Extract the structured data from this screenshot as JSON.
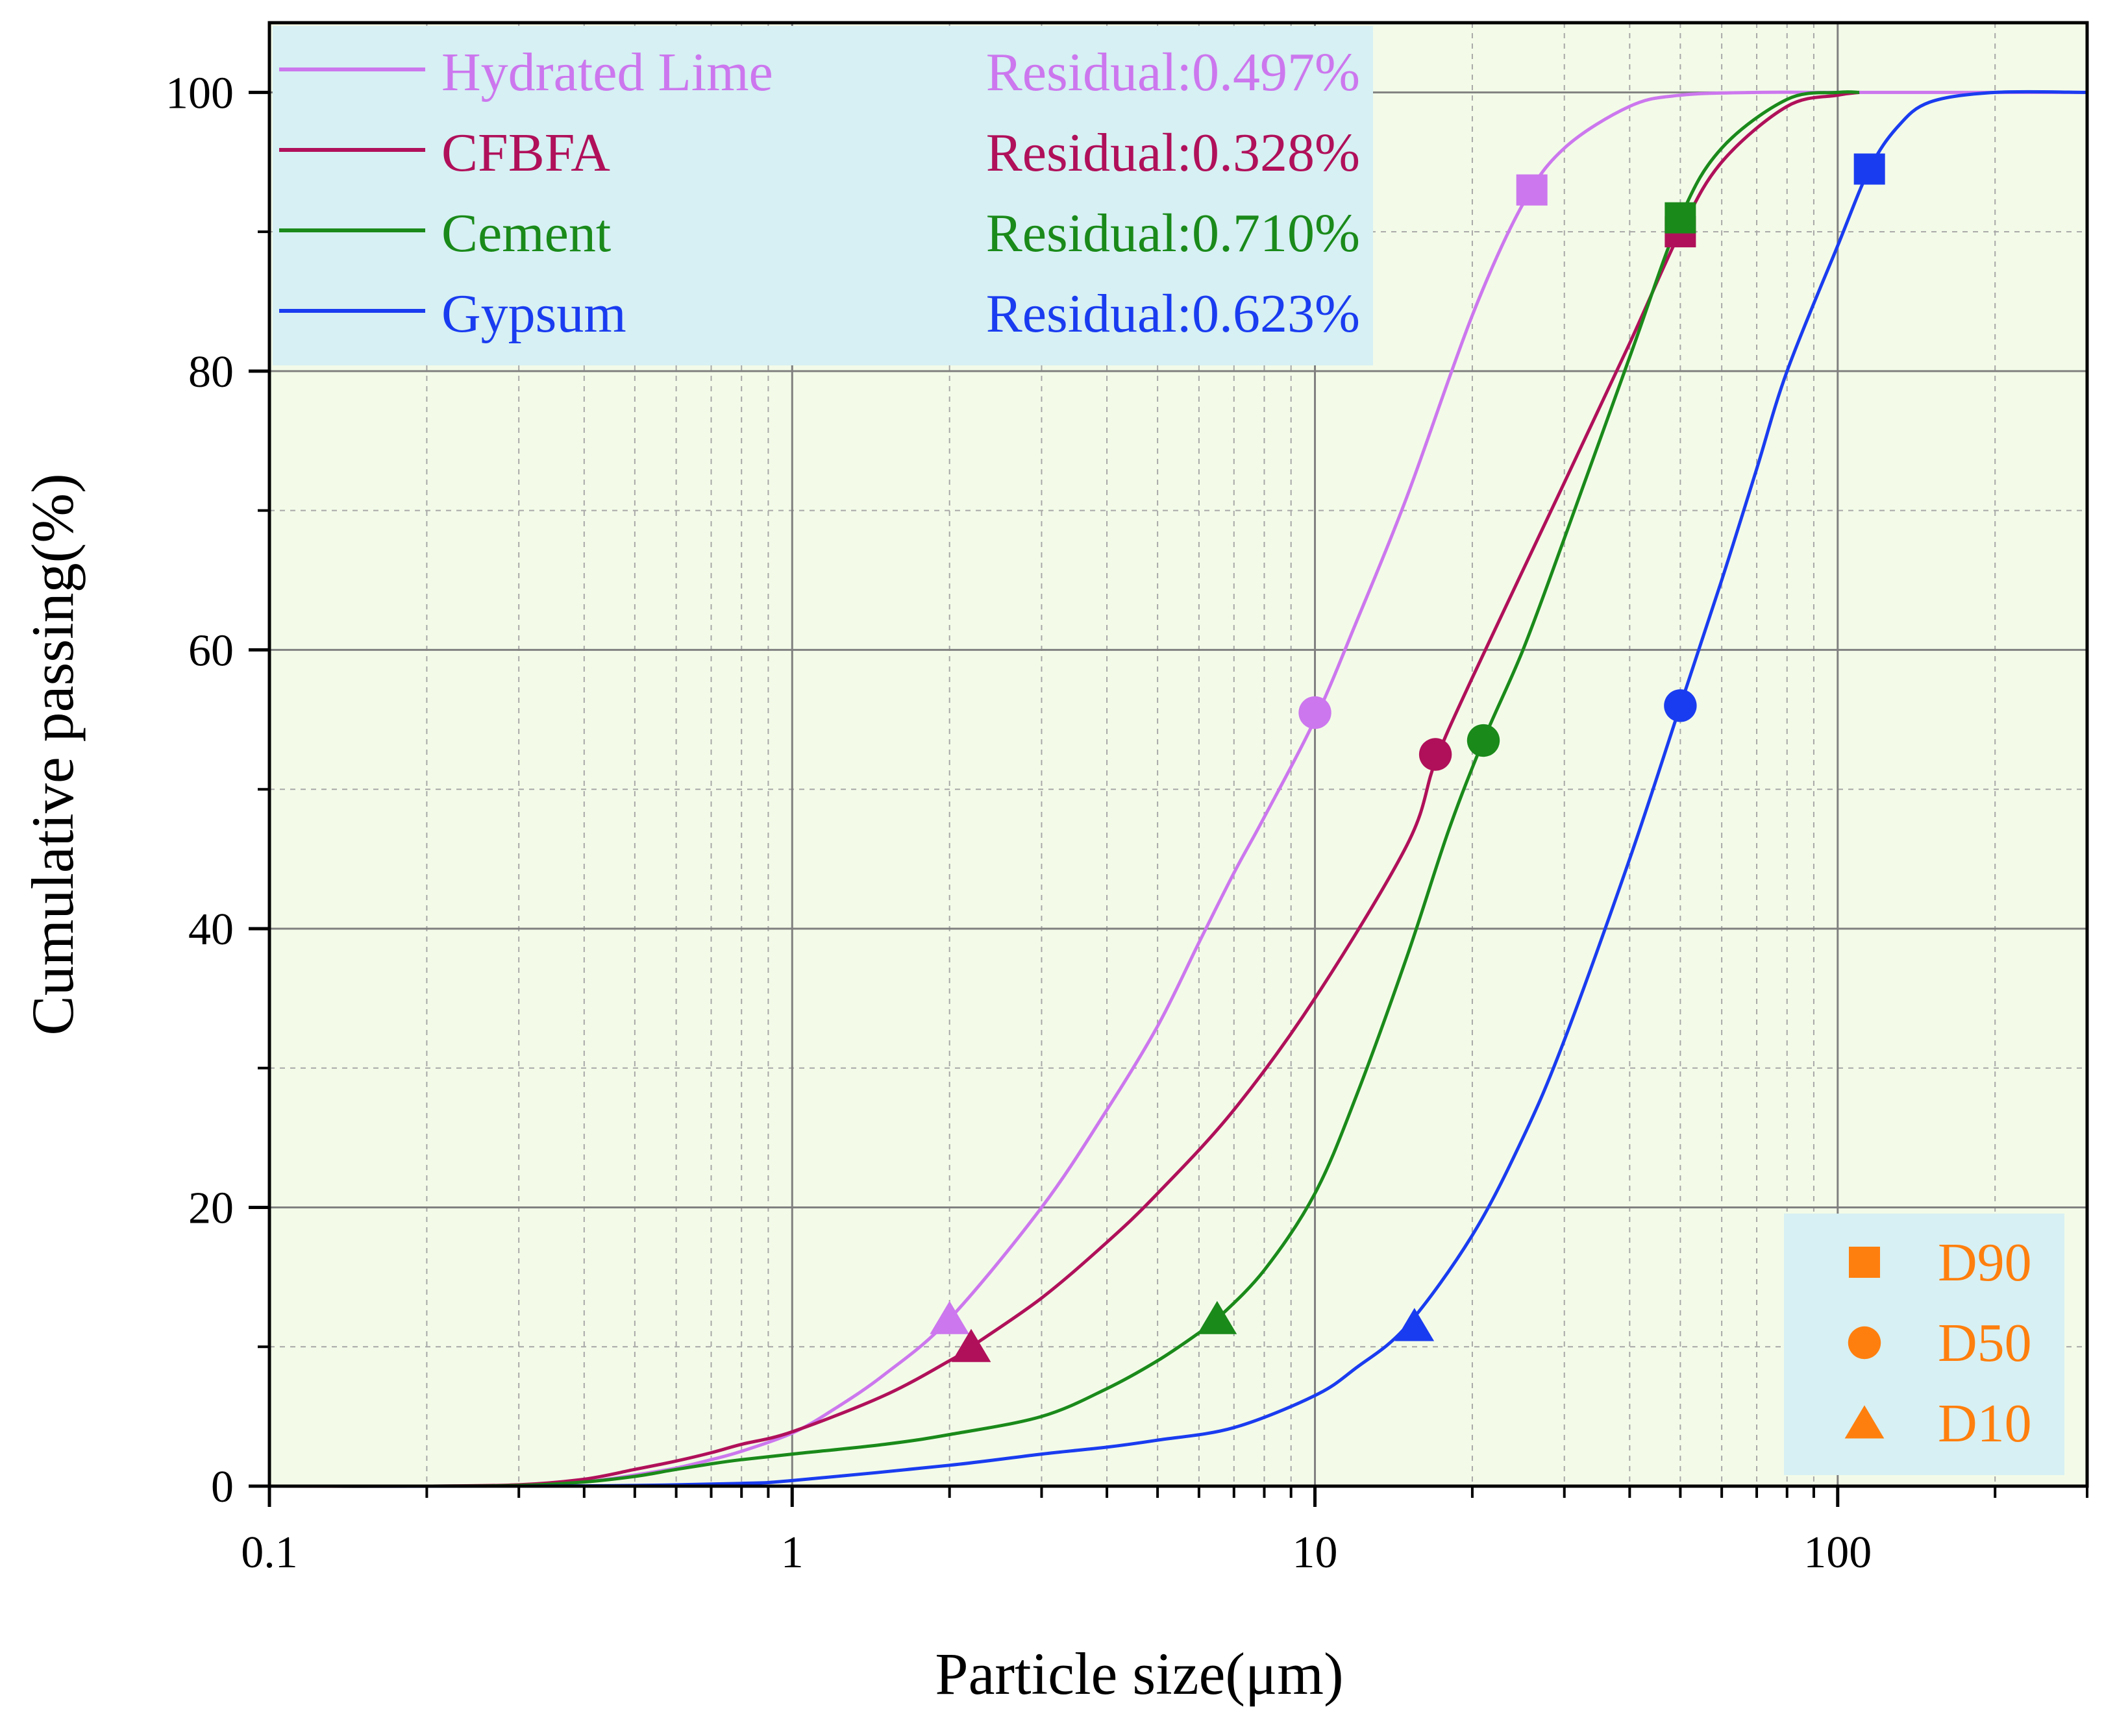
{
  "chart_data": {
    "type": "line",
    "xlabel": "Particle size(μm)",
    "ylabel": "Cumulative passing(%)",
    "xscale": "log",
    "xlim": [
      0.1,
      300
    ],
    "ylim": [
      0,
      105
    ],
    "x_ticks": [
      0.1,
      1,
      10,
      100
    ],
    "x_tick_labels": [
      "0.1",
      "1",
      "10",
      "100"
    ],
    "y_ticks": [
      0,
      20,
      40,
      60,
      80,
      100
    ],
    "y_tick_labels": [
      "0",
      "20",
      "40",
      "60",
      "80",
      "100"
    ],
    "grid": true,
    "legend_position": "top-left",
    "series": [
      {
        "name": "Hydrated Lime",
        "residual": "Residual:0.497%",
        "color": "#cc77ee",
        "points": [
          [
            0.1,
            0
          ],
          [
            0.2,
            0
          ],
          [
            0.3,
            0.05
          ],
          [
            0.4,
            0.3
          ],
          [
            0.5,
            0.8
          ],
          [
            0.6,
            1.3
          ],
          [
            0.7,
            1.9
          ],
          [
            0.8,
            2.5
          ],
          [
            1,
            3.8
          ],
          [
            1.2,
            5.5
          ],
          [
            1.5,
            8
          ],
          [
            2,
            12
          ],
          [
            3,
            20
          ],
          [
            4,
            27
          ],
          [
            5,
            33
          ],
          [
            6,
            39
          ],
          [
            7,
            44
          ],
          [
            8,
            48
          ],
          [
            10,
            55
          ],
          [
            12,
            62
          ],
          [
            15,
            71
          ],
          [
            20,
            84
          ],
          [
            25,
            92
          ],
          [
            30,
            96
          ],
          [
            40,
            99
          ],
          [
            50,
            99.8
          ],
          [
            70,
            100
          ],
          [
            100,
            100
          ],
          [
            300,
            100
          ]
        ],
        "d10": [
          2.0,
          12
        ],
        "d50": [
          10.0,
          55.5
        ],
        "d90": [
          26.0,
          93
        ]
      },
      {
        "name": "CFBFA",
        "residual": "Residual:0.328%",
        "color": "#b0105a",
        "points": [
          [
            0.1,
            0
          ],
          [
            0.2,
            0
          ],
          [
            0.3,
            0.1
          ],
          [
            0.4,
            0.5
          ],
          [
            0.5,
            1.2
          ],
          [
            0.6,
            1.8
          ],
          [
            0.7,
            2.4
          ],
          [
            0.8,
            3
          ],
          [
            1,
            3.9
          ],
          [
            1.5,
            6.5
          ],
          [
            2,
            9
          ],
          [
            2.2,
            10
          ],
          [
            3,
            13.5
          ],
          [
            4,
            17.5
          ],
          [
            5,
            21
          ],
          [
            7,
            27
          ],
          [
            10,
            35
          ],
          [
            15,
            46
          ],
          [
            17,
            52
          ],
          [
            20,
            58
          ],
          [
            30,
            72
          ],
          [
            40,
            82
          ],
          [
            50,
            90
          ],
          [
            60,
            95
          ],
          [
            80,
            99
          ],
          [
            100,
            99.8
          ],
          [
            110,
            100
          ]
        ],
        "d10": [
          2.2,
          10
        ],
        "d50": [
          17.0,
          52.5
        ],
        "d90": [
          50.0,
          90
        ]
      },
      {
        "name": "Cement",
        "residual": "Residual:0.710%",
        "color": "#1a8a1a",
        "points": [
          [
            0.1,
            0
          ],
          [
            0.2,
            0
          ],
          [
            0.3,
            0.05
          ],
          [
            0.4,
            0.3
          ],
          [
            0.5,
            0.7
          ],
          [
            0.6,
            1.2
          ],
          [
            0.7,
            1.6
          ],
          [
            0.8,
            1.9
          ],
          [
            1,
            2.3
          ],
          [
            1.5,
            3
          ],
          [
            2,
            3.7
          ],
          [
            3,
            5
          ],
          [
            4,
            7
          ],
          [
            5,
            9
          ],
          [
            6,
            11
          ],
          [
            6.5,
            12
          ],
          [
            8,
            15.5
          ],
          [
            10,
            21
          ],
          [
            12,
            28
          ],
          [
            15,
            38
          ],
          [
            18,
            47
          ],
          [
            21,
            53.5
          ],
          [
            25,
            60
          ],
          [
            30,
            68
          ],
          [
            40,
            81
          ],
          [
            50,
            91
          ],
          [
            60,
            96
          ],
          [
            80,
            99.5
          ],
          [
            100,
            100
          ],
          [
            110,
            100
          ]
        ],
        "d10": [
          6.5,
          12
        ],
        "d50": [
          21.0,
          53.5
        ],
        "d90": [
          50.0,
          91
        ]
      },
      {
        "name": "Gypsum",
        "residual": "Residual:0.623%",
        "color": "#1a3cf0",
        "points": [
          [
            0.1,
            0
          ],
          [
            0.3,
            0
          ],
          [
            0.5,
            0.05
          ],
          [
            0.8,
            0.2
          ],
          [
            1,
            0.4
          ],
          [
            2,
            1.5
          ],
          [
            3,
            2.3
          ],
          [
            4,
            2.8
          ],
          [
            5,
            3.3
          ],
          [
            7,
            4.2
          ],
          [
            10,
            6.5
          ],
          [
            12,
            8.5
          ],
          [
            15,
            11.5
          ],
          [
            20,
            18
          ],
          [
            25,
            25
          ],
          [
            30,
            32
          ],
          [
            40,
            45
          ],
          [
            50,
            56
          ],
          [
            60,
            65
          ],
          [
            70,
            73
          ],
          [
            80,
            80
          ],
          [
            100,
            89
          ],
          [
            115,
            94.5
          ],
          [
            130,
            97.5
          ],
          [
            150,
            99.3
          ],
          [
            200,
            100
          ],
          [
            300,
            100
          ]
        ],
        "d10": [
          15.5,
          11.5
        ],
        "d50": [
          50.0,
          56
        ],
        "d90": [
          115.0,
          94.5
        ]
      }
    ],
    "marker_legend": {
      "color": "#ff7f0e",
      "entries": [
        {
          "shape": "square",
          "label": "D90"
        },
        {
          "shape": "circle",
          "label": "D50"
        },
        {
          "shape": "triangle",
          "label": "D10"
        }
      ]
    },
    "colors": {
      "plot_bg": "#f3fbe8",
      "legend_bg": "#d6f0f3",
      "major_grid": "#808080",
      "minor_grid": "#a8a8a8"
    }
  }
}
